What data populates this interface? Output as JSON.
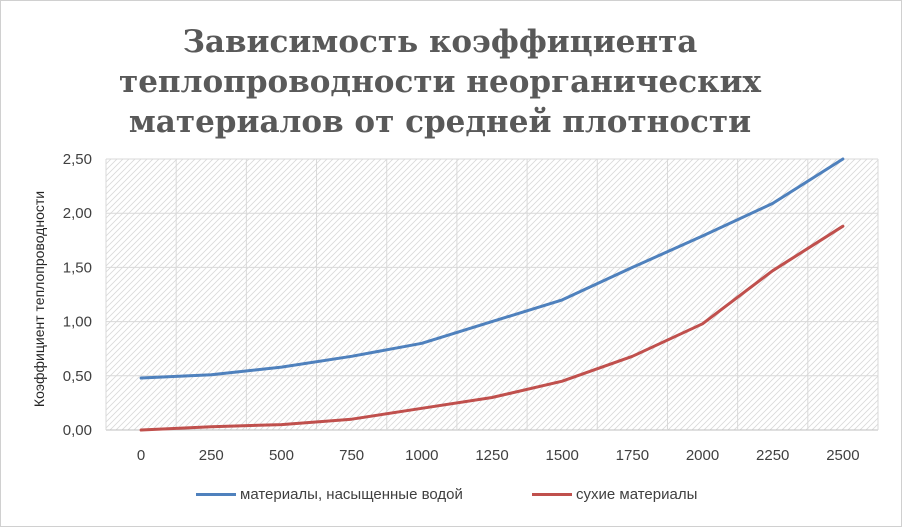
{
  "chart_data": {
    "type": "line",
    "title_lines": [
      "Зависимость коэффициента",
      "теплопроводности неорганических",
      "материалов от средней плотности"
    ],
    "xlabel": "",
    "ylabel": "Коэффициент теплопроводности",
    "categories": [
      "0",
      "250",
      "500",
      "750",
      "1000",
      "1250",
      "1500",
      "1750",
      "2000",
      "2250",
      "2500"
    ],
    "ylim": [
      0,
      2.5
    ],
    "yticks": [
      "0,00",
      "0,50",
      "1,00",
      "1,50",
      "2,00",
      "2,50"
    ],
    "grid": true,
    "legend_position": "bottom",
    "series": [
      {
        "name": "материалы, насыщенные водой",
        "color": "#4F81BD",
        "values": [
          0.48,
          0.51,
          0.58,
          0.68,
          0.8,
          1.0,
          1.2,
          1.5,
          1.79,
          2.09,
          2.5
        ]
      },
      {
        "name": "сухие материалы",
        "color": "#C0504D",
        "values": [
          0.0,
          0.03,
          0.05,
          0.1,
          0.2,
          0.3,
          0.45,
          0.68,
          0.98,
          1.47,
          1.88
        ]
      }
    ]
  }
}
